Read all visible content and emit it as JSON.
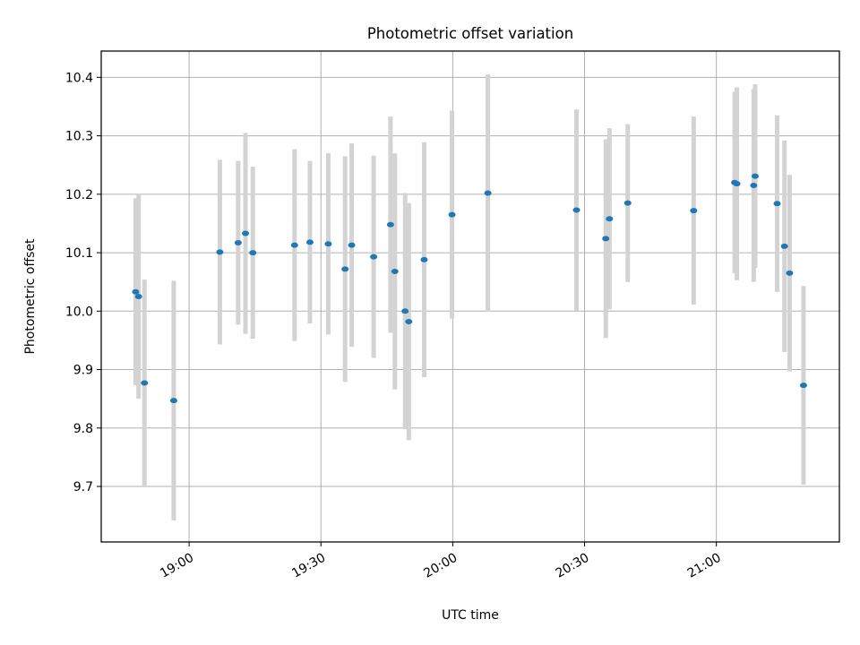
{
  "chart_data": {
    "type": "scatter",
    "title": "Photometric offset variation",
    "xlabel": "UTC time",
    "ylabel": "Photometric offset",
    "xlim": [
      "18:40",
      "21:28"
    ],
    "ylim": [
      9.605,
      10.445
    ],
    "xticks": [
      "19:00",
      "19:30",
      "20:00",
      "20:30",
      "21:00"
    ],
    "yticks": [
      "9.7",
      "9.8",
      "9.9",
      "10.0",
      "10.1",
      "10.2",
      "10.3",
      "10.4"
    ],
    "grid": true,
    "colors": {
      "points": "#1f77b4",
      "errorbars": "#d3d3d3",
      "grid": "#b0b0b0"
    },
    "series": [
      {
        "points": [
          {
            "x": "18:47:50",
            "y": 10.033,
            "err": 0.16
          },
          {
            "x": "18:48:30",
            "y": 10.025,
            "err": 0.175
          },
          {
            "x": "18:49:50",
            "y": 9.877,
            "err": 0.177
          },
          {
            "x": "18:56:30",
            "y": 9.847,
            "err": 0.205
          },
          {
            "x": "19:07:00",
            "y": 10.101,
            "err": 0.158
          },
          {
            "x": "19:11:10",
            "y": 10.117,
            "err": 0.14
          },
          {
            "x": "19:12:50",
            "y": 10.133,
            "err": 0.172
          },
          {
            "x": "19:14:30",
            "y": 10.1,
            "err": 0.147
          },
          {
            "x": "19:24:00",
            "y": 10.113,
            "err": 0.164
          },
          {
            "x": "19:27:30",
            "y": 10.118,
            "err": 0.139
          },
          {
            "x": "19:31:40",
            "y": 10.115,
            "err": 0.155
          },
          {
            "x": "19:35:30",
            "y": 10.072,
            "err": 0.193
          },
          {
            "x": "19:37:00",
            "y": 10.113,
            "err": 0.174
          },
          {
            "x": "19:42:00",
            "y": 10.093,
            "err": 0.173
          },
          {
            "x": "19:45:50",
            "y": 10.148,
            "err": 0.185
          },
          {
            "x": "19:46:50",
            "y": 10.068,
            "err": 0.202
          },
          {
            "x": "19:49:10",
            "y": 10.0,
            "err": 0.202
          },
          {
            "x": "19:50:00",
            "y": 9.982,
            "err": 0.203
          },
          {
            "x": "19:53:30",
            "y": 10.088,
            "err": 0.201
          },
          {
            "x": "19:59:50",
            "y": 10.165,
            "err": 0.178
          },
          {
            "x": "20:08:00",
            "y": 10.202,
            "err": 0.203
          },
          {
            "x": "20:28:10",
            "y": 10.173,
            "err": 0.172
          },
          {
            "x": "20:34:50",
            "y": 10.124,
            "err": 0.17
          },
          {
            "x": "20:35:40",
            "y": 10.158,
            "err": 0.155
          },
          {
            "x": "20:39:50",
            "y": 10.185,
            "err": 0.135
          },
          {
            "x": "20:54:50",
            "y": 10.172,
            "err": 0.161
          },
          {
            "x": "21:04:10",
            "y": 10.22,
            "err": 0.155
          },
          {
            "x": "21:04:40",
            "y": 10.218,
            "err": 0.165
          },
          {
            "x": "21:08:30",
            "y": 10.215,
            "err": 0.165
          },
          {
            "x": "21:08:50",
            "y": 10.231,
            "err": 0.157
          },
          {
            "x": "21:13:50",
            "y": 10.184,
            "err": 0.151
          },
          {
            "x": "21:15:30",
            "y": 10.111,
            "err": 0.181
          },
          {
            "x": "21:16:40",
            "y": 10.065,
            "err": 0.168
          },
          {
            "x": "21:19:50",
            "y": 9.873,
            "err": 0.17
          }
        ]
      }
    ]
  }
}
